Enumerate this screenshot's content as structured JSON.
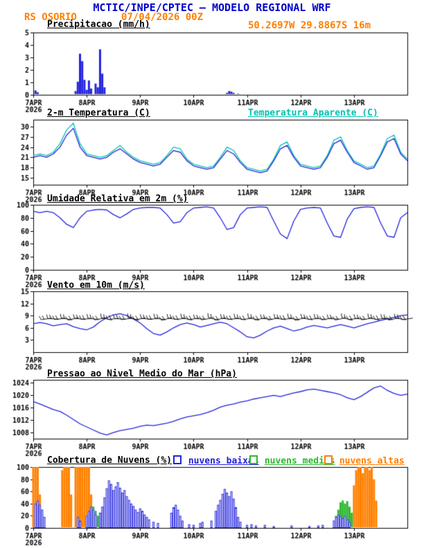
{
  "header": {
    "title": "MCTIC/INPE/CPTEC — MODELO REGIONAL WRF",
    "station": "RS OSORIO",
    "run": "07/04/2026 00Z",
    "location": "50.2697W 29.8867S 16m"
  },
  "colors": {
    "header_blue": "#0000cc",
    "orange": "#ff8000",
    "blue": "#2222dd",
    "cyan": "#00c2b2",
    "green": "#2db82d",
    "black": "#000000"
  },
  "x_axis": {
    "range_hours": [
      0,
      168
    ],
    "tick_hours": [
      0,
      24,
      48,
      72,
      96,
      120,
      144
    ],
    "labels": [
      "7APR",
      "8APR",
      "9APR",
      "10APR",
      "11APR",
      "12APR",
      "13APR"
    ],
    "year_label": "2026"
  },
  "chart_data": [
    {
      "key": "precip",
      "type": "bar",
      "title": "Precipitacao (mm/h)",
      "ylim": [
        0,
        5
      ],
      "yticks": [
        0,
        1,
        2,
        3,
        4,
        5
      ],
      "color": "blue",
      "bar_width_hours": 1,
      "bars": [
        [
          1,
          0.35
        ],
        [
          2,
          0.2
        ],
        [
          19,
          0.3
        ],
        [
          20,
          1.05
        ],
        [
          21,
          3.3
        ],
        [
          22,
          2.7
        ],
        [
          23,
          1.2
        ],
        [
          24,
          0.4
        ],
        [
          25,
          1.15
        ],
        [
          26,
          0.5
        ],
        [
          28,
          0.9
        ],
        [
          29,
          0.6
        ],
        [
          30,
          3.65
        ],
        [
          31,
          1.7
        ],
        [
          32,
          0.6
        ],
        [
          87,
          0.15
        ],
        [
          88,
          0.3
        ],
        [
          89,
          0.25
        ],
        [
          90,
          0.15
        ],
        [
          92,
          0.1
        ]
      ]
    },
    {
      "key": "temp",
      "type": "line",
      "title": "2-m Temperatura (C)",
      "secondary_title": "Temperatura Aparente (C)",
      "ylim": [
        13,
        32
      ],
      "yticks": [
        15,
        18,
        21,
        24,
        27,
        30
      ],
      "x_step_hours": 3,
      "series": [
        {
          "name": "Temperatura Aparente (C)",
          "color": "cyan",
          "values": [
            21.5,
            22,
            21.5,
            22.5,
            25,
            29,
            31,
            25,
            22,
            21.5,
            21,
            21.5,
            23,
            24.5,
            22.5,
            21,
            20,
            19.5,
            19,
            19.5,
            21.5,
            24,
            23.5,
            20.5,
            19,
            18.5,
            18,
            18.5,
            21,
            24,
            23,
            20,
            18,
            17.5,
            17,
            17.5,
            20.5,
            24.5,
            25.5,
            21.5,
            19,
            18.5,
            18,
            18.5,
            21.5,
            26,
            27,
            23,
            20,
            19,
            18,
            18.5,
            22,
            26.5,
            27.5,
            22.5,
            20.5
          ]
        },
        {
          "name": "2-m Temperatura (C)",
          "color": "blue",
          "values": [
            21,
            21.5,
            21,
            22,
            24,
            27.5,
            29.5,
            24,
            21.5,
            21,
            20.5,
            21,
            22.5,
            23.5,
            22,
            20.5,
            19.5,
            19,
            18.5,
            19,
            21,
            23,
            22.5,
            20,
            18.5,
            18,
            17.5,
            18,
            20.5,
            23,
            22,
            19.5,
            17.5,
            17,
            16.5,
            17,
            20,
            23.5,
            24.5,
            21,
            18.5,
            18,
            17.5,
            18,
            21,
            25,
            26,
            22.5,
            19.5,
            18.5,
            17.5,
            18,
            21.5,
            25.5,
            26.5,
            22,
            20
          ]
        }
      ]
    },
    {
      "key": "rh",
      "type": "line",
      "title": "Umidade Relativa em 2m (%)",
      "ylim": [
        0,
        100
      ],
      "yticks": [
        0,
        20,
        40,
        60,
        80,
        100
      ],
      "x_step_hours": 3,
      "series": [
        {
          "name": "Umidade Relativa em 2m (%)",
          "color": "blue",
          "values": [
            90,
            88,
            90,
            88,
            80,
            70,
            65,
            80,
            90,
            92,
            93,
            92,
            85,
            80,
            86,
            93,
            95,
            96,
            96,
            95,
            85,
            72,
            74,
            88,
            95,
            96,
            97,
            95,
            80,
            62,
            65,
            85,
            95,
            96,
            97,
            96,
            75,
            55,
            48,
            75,
            93,
            95,
            96,
            95,
            72,
            52,
            50,
            78,
            94,
            96,
            97,
            96,
            72,
            52,
            50,
            80,
            88
          ]
        }
      ]
    },
    {
      "key": "wind",
      "type": "line",
      "title": "Vento em 10m (m/s)",
      "ylim": [
        0,
        15
      ],
      "yticks": [
        3,
        6,
        9,
        12,
        15
      ],
      "x_step_hours": 3,
      "series": [
        {
          "name": "Vento em 10m (m/s)",
          "color": "blue",
          "values": [
            7,
            7.3,
            7,
            6.5,
            6.8,
            7,
            6.3,
            5.8,
            5.5,
            6.2,
            7.5,
            8.5,
            9.2,
            9.5,
            9,
            8.2,
            7.2,
            5.8,
            4.6,
            4.2,
            5,
            6,
            6.8,
            7.2,
            6.8,
            6.2,
            6.6,
            7,
            7.4,
            7,
            6,
            5,
            3.8,
            3.5,
            4.2,
            5.2,
            6,
            6.4,
            5.8,
            5.2,
            5.6,
            6.2,
            6.6,
            6.3,
            6,
            6.4,
            6.8,
            6.4,
            6,
            6.5,
            7,
            7.4,
            7.8,
            8.2,
            8.6,
            9,
            9.2
          ]
        }
      ],
      "barbs": {
        "name": "wind-barbs",
        "color": "black",
        "level": 8.2,
        "start_hour": 6,
        "step_hours": 3,
        "angles_deg": [
          8,
          -4,
          6,
          -10,
          12,
          -6,
          4,
          -8,
          10,
          -12,
          6,
          -4,
          8,
          -14,
          10,
          -6,
          4,
          -10,
          14,
          -8,
          6,
          -12,
          8,
          -4,
          10,
          -16,
          12,
          -8,
          6,
          -10,
          8,
          -14,
          10,
          -6,
          12,
          -8,
          4,
          -12,
          14,
          -10,
          6,
          -8,
          10,
          -4,
          12,
          -14,
          8,
          -6,
          10,
          -12,
          6,
          -8,
          12,
          -10,
          8
        ]
      }
    },
    {
      "key": "pres",
      "type": "line",
      "title": "Pressao ao Nivel Medio do Mar (hPa)",
      "ylim": [
        1006,
        1025
      ],
      "yticks": [
        1008,
        1012,
        1016,
        1020,
        1024
      ],
      "x_step_hours": 3,
      "series": [
        {
          "name": "Pressao ao Nivel Medio do Mar (hPa)",
          "color": "blue",
          "values": [
            1018,
            1017.2,
            1016.3,
            1015.4,
            1014.8,
            1013.6,
            1012.2,
            1010.8,
            1009.8,
            1008.8,
            1007.8,
            1007.2,
            1008,
            1008.6,
            1009,
            1009.4,
            1010,
            1010.4,
            1010.2,
            1010.6,
            1011,
            1011.6,
            1012.4,
            1013,
            1013.4,
            1013.8,
            1014.4,
            1015.2,
            1016.2,
            1016.8,
            1017.2,
            1017.8,
            1018.2,
            1018.8,
            1019.2,
            1019.6,
            1020,
            1019.6,
            1020.2,
            1020.8,
            1021.2,
            1021.8,
            1022,
            1021.6,
            1021.2,
            1020.8,
            1020.2,
            1019.2,
            1018.6,
            1019.6,
            1021,
            1022.4,
            1023,
            1021.6,
            1020.6,
            1020,
            1020.4
          ]
        }
      ]
    },
    {
      "key": "cloud",
      "type": "bar",
      "title": "Cobertura de Nuvens (%)",
      "ylim": [
        0,
        100
      ],
      "yticks": [
        0,
        20,
        40,
        60,
        80,
        100
      ],
      "bar_width_hours": 1,
      "series": [
        {
          "name": "nuvens baixas",
          "color": "blue",
          "style": "outline",
          "bars": [
            [
              1,
              40
            ],
            [
              2,
              45
            ],
            [
              3,
              38
            ],
            [
              4,
              30
            ],
            [
              5,
              18
            ],
            [
              20,
              18
            ],
            [
              21,
              12
            ],
            [
              24,
              20
            ],
            [
              25,
              28
            ],
            [
              26,
              35
            ],
            [
              27,
              30
            ],
            [
              28,
              22
            ],
            [
              30,
              25
            ],
            [
              31,
              35
            ],
            [
              32,
              50
            ],
            [
              33,
              65
            ],
            [
              34,
              78
            ],
            [
              35,
              72
            ],
            [
              36,
              62
            ],
            [
              37,
              68
            ],
            [
              38,
              75
            ],
            [
              39,
              66
            ],
            [
              40,
              58
            ],
            [
              41,
              62
            ],
            [
              42,
              52
            ],
            [
              43,
              46
            ],
            [
              44,
              40
            ],
            [
              45,
              36
            ],
            [
              46,
              30
            ],
            [
              47,
              26
            ],
            [
              48,
              32
            ],
            [
              49,
              28
            ],
            [
              50,
              22
            ],
            [
              51,
              18
            ],
            [
              52,
              14
            ],
            [
              54,
              10
            ],
            [
              56,
              8
            ],
            [
              62,
              25
            ],
            [
              63,
              34
            ],
            [
              64,
              38
            ],
            [
              65,
              30
            ],
            [
              66,
              20
            ],
            [
              67,
              12
            ],
            [
              70,
              6
            ],
            [
              72,
              5
            ],
            [
              75,
              8
            ],
            [
              76,
              10
            ],
            [
              80,
              12
            ],
            [
              82,
              28
            ],
            [
              83,
              38
            ],
            [
              84,
              46
            ],
            [
              85,
              56
            ],
            [
              86,
              64
            ],
            [
              87,
              58
            ],
            [
              88,
              52
            ],
            [
              89,
              60
            ],
            [
              90,
              48
            ],
            [
              91,
              34
            ],
            [
              92,
              18
            ],
            [
              93,
              10
            ],
            [
              96,
              5
            ],
            [
              98,
              6
            ],
            [
              100,
              4
            ],
            [
              104,
              5
            ],
            [
              108,
              3
            ],
            [
              116,
              4
            ],
            [
              124,
              3
            ],
            [
              128,
              4
            ],
            [
              130,
              5
            ],
            [
              135,
              12
            ],
            [
              136,
              18
            ],
            [
              137,
              22
            ],
            [
              138,
              20
            ],
            [
              139,
              16
            ],
            [
              140,
              20
            ],
            [
              141,
              14
            ],
            [
              142,
              10
            ]
          ]
        },
        {
          "name": "nuvens medias",
          "color": "green",
          "style": "fill",
          "bars": [
            [
              2,
              25
            ],
            [
              3,
              30
            ],
            [
              4,
              22
            ],
            [
              26,
              30
            ],
            [
              27,
              35
            ],
            [
              28,
              28
            ],
            [
              29,
              20
            ],
            [
              136,
              20
            ],
            [
              137,
              30
            ],
            [
              138,
              42
            ],
            [
              139,
              45
            ],
            [
              140,
              40
            ],
            [
              141,
              44
            ],
            [
              142,
              35
            ],
            [
              143,
              25
            ]
          ]
        },
        {
          "name": "nuvens altas",
          "color": "orange",
          "style": "fill",
          "bars": [
            [
              0,
              100
            ],
            [
              1,
              100
            ],
            [
              2,
              100
            ],
            [
              3,
              55
            ],
            [
              13,
              95
            ],
            [
              14,
              100
            ],
            [
              15,
              100
            ],
            [
              16,
              100
            ],
            [
              17,
              55
            ],
            [
              19,
              100
            ],
            [
              20,
              100
            ],
            [
              21,
              100
            ],
            [
              22,
              100
            ],
            [
              23,
              100
            ],
            [
              24,
              100
            ],
            [
              25,
              100
            ],
            [
              26,
              55
            ],
            [
              144,
              70
            ],
            [
              145,
              95
            ],
            [
              146,
              100
            ],
            [
              147,
              100
            ],
            [
              148,
              90
            ],
            [
              149,
              100
            ],
            [
              150,
              100
            ],
            [
              151,
              95
            ],
            [
              152,
              100
            ],
            [
              153,
              80
            ],
            [
              154,
              45
            ]
          ]
        }
      ]
    }
  ]
}
